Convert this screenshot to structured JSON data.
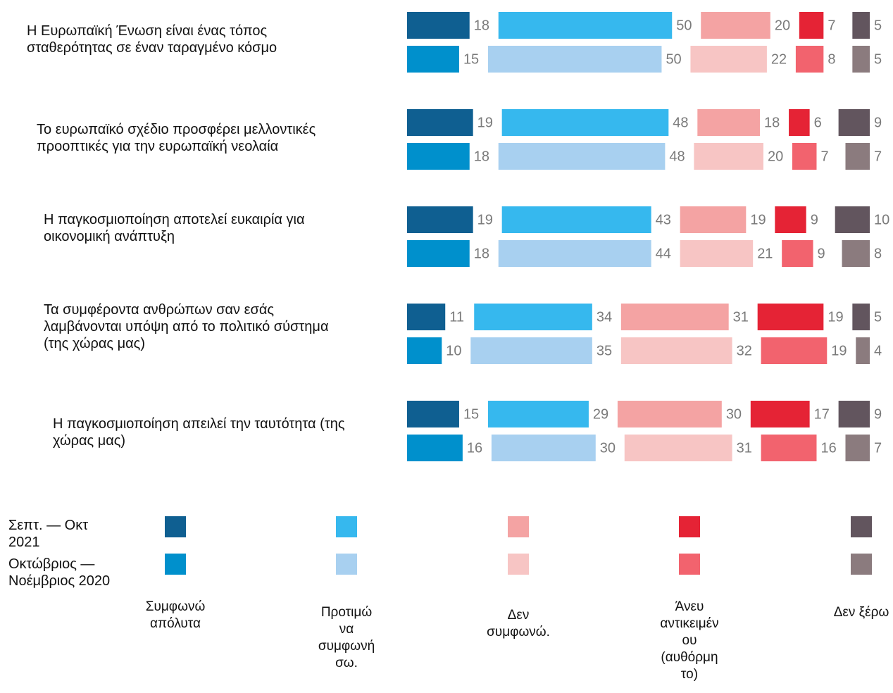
{
  "chart_data": {
    "type": "bar",
    "categories": [
      "Η Ευρωπαϊκή Ένωση είναι ένας τόπος σταθερότητας σε έναν ταραγμένο κόσμο",
      "Το ευρωπαϊκό σχέδιο προσφέρει μελλοντικές προοπτικές για την ευρωπαϊκή νεολαία",
      "Η παγκοσμιοποίηση αποτελεί ευκαιρία για οικονομική ανάπτυξη",
      "Τα συμφέροντα ανθρώπων σαν εσάς λαμβάνονται υπόψη από το πολιτικό σύστημα (της χώρας μας)",
      "Η παγκοσμιοποίηση απειλεί την ταυτότητα (της χώρας μας)"
    ],
    "periods": [
      "Σεπτ. — Οκτ 2021",
      "Οκτώβριος — Νοέμβριος 2020"
    ],
    "answers": [
      "Συμφωνώ απόλυτα",
      "Προτιμώ να συμφωνήσω.",
      "Δεν συμφωνώ.",
      "Άνευ αντικειμένου (αυθόρμητο)",
      "Δεν ξέρω"
    ],
    "colors": [
      [
        "#0f5f91",
        "#36b8ee",
        "#f4a3a3",
        "#e52335",
        "#62555e"
      ],
      [
        "#0090cc",
        "#a8d0f0",
        "#f7c5c4",
        "#f2636e",
        "#8b7b7e"
      ]
    ],
    "values": [
      [
        [
          18,
          50,
          20,
          7,
          5
        ],
        [
          15,
          50,
          22,
          8,
          5
        ]
      ],
      [
        [
          19,
          48,
          18,
          6,
          9
        ],
        [
          18,
          48,
          20,
          7,
          7
        ]
      ],
      [
        [
          19,
          43,
          19,
          9,
          10
        ],
        [
          18,
          44,
          21,
          9,
          8
        ]
      ],
      [
        [
          11,
          34,
          31,
          19,
          5
        ],
        [
          10,
          35,
          32,
          19,
          4
        ]
      ],
      [
        [
          15,
          29,
          30,
          17,
          9
        ],
        [
          16,
          30,
          31,
          16,
          7
        ]
      ]
    ]
  }
}
